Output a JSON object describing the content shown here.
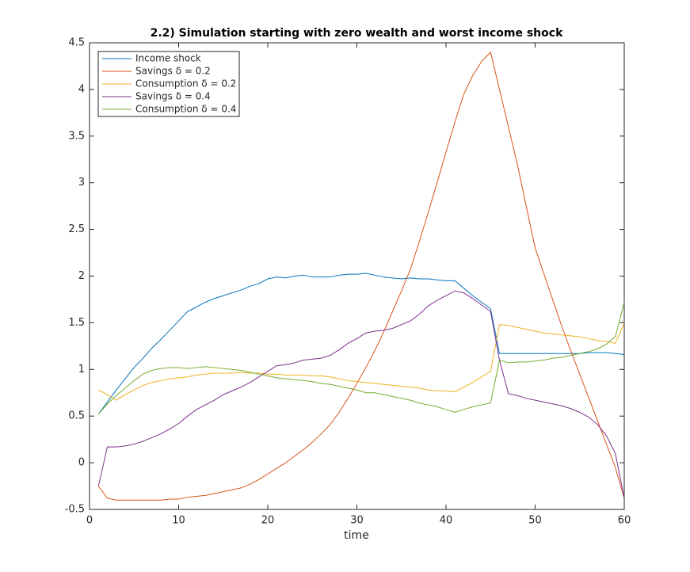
{
  "chart_data": {
    "type": "line",
    "title": "2.2) Simulation starting with zero wealth and worst income shock",
    "x_label": "time",
    "x": [
      1,
      2,
      3,
      4,
      5,
      6,
      7,
      8,
      9,
      10,
      11,
      12,
      13,
      14,
      15,
      16,
      17,
      18,
      19,
      20,
      21,
      22,
      23,
      24,
      25,
      26,
      27,
      28,
      29,
      30,
      31,
      32,
      33,
      34,
      35,
      36,
      37,
      38,
      39,
      40,
      41,
      42,
      43,
      44,
      45,
      46,
      47,
      48,
      49,
      50,
      51,
      52,
      53,
      54,
      55,
      56,
      57,
      58,
      59,
      60
    ],
    "series": [
      {
        "name": "Income shock",
        "color": "#0072bd",
        "values": [
          0.52,
          0.65,
          0.78,
          0.9,
          1.02,
          1.12,
          1.23,
          1.32,
          1.42,
          1.52,
          1.62,
          1.67,
          1.72,
          1.76,
          1.79,
          1.82,
          1.85,
          1.89,
          1.92,
          1.97,
          1.99,
          1.98,
          2.0,
          2.01,
          1.99,
          1.99,
          1.99,
          2.01,
          2.02,
          2.02,
          2.03,
          2.01,
          1.99,
          1.98,
          1.97,
          1.98,
          1.97,
          1.97,
          1.96,
          1.95,
          1.95,
          1.87,
          1.79,
          1.72,
          1.65,
          1.17,
          1.17,
          1.17,
          1.17,
          1.17,
          1.17,
          1.17,
          1.17,
          1.17,
          1.17,
          1.18,
          1.18,
          1.18,
          1.17,
          1.16
        ]
      },
      {
        "name": "Savings δ = 0.2",
        "color": "#d95319",
        "values": [
          -0.25,
          -0.38,
          -0.4,
          -0.4,
          -0.4,
          -0.4,
          -0.4,
          -0.4,
          -0.39,
          -0.39,
          -0.37,
          -0.36,
          -0.35,
          -0.33,
          -0.31,
          -0.29,
          -0.27,
          -0.23,
          -0.18,
          -0.12,
          -0.06,
          0.0,
          0.07,
          0.14,
          0.22,
          0.31,
          0.41,
          0.54,
          0.69,
          0.85,
          1.02,
          1.2,
          1.4,
          1.62,
          1.84,
          2.07,
          2.37,
          2.68,
          3.0,
          3.33,
          3.65,
          3.95,
          4.15,
          4.3,
          4.4,
          4.0,
          3.6,
          3.2,
          2.75,
          2.3,
          2.02,
          1.74,
          1.46,
          1.2,
          0.95,
          0.7,
          0.45,
          0.2,
          -0.05,
          -0.38
        ]
      },
      {
        "name": "Consumption δ = 0.2",
        "color": "#edb120",
        "values": [
          0.78,
          0.73,
          0.67,
          0.73,
          0.78,
          0.83,
          0.86,
          0.88,
          0.9,
          0.91,
          0.92,
          0.94,
          0.95,
          0.96,
          0.96,
          0.96,
          0.97,
          0.96,
          0.96,
          0.95,
          0.95,
          0.94,
          0.94,
          0.94,
          0.93,
          0.93,
          0.92,
          0.9,
          0.88,
          0.87,
          0.86,
          0.85,
          0.84,
          0.83,
          0.82,
          0.81,
          0.8,
          0.78,
          0.77,
          0.77,
          0.76,
          0.81,
          0.86,
          0.92,
          0.98,
          1.48,
          1.47,
          1.45,
          1.43,
          1.41,
          1.39,
          1.38,
          1.37,
          1.36,
          1.35,
          1.33,
          1.31,
          1.3,
          1.28,
          1.5
        ]
      },
      {
        "name": "Savings δ = 0.4",
        "color": "#7e2f8e",
        "values": [
          -0.25,
          0.17,
          0.17,
          0.18,
          0.2,
          0.23,
          0.27,
          0.31,
          0.36,
          0.42,
          0.5,
          0.57,
          0.62,
          0.67,
          0.73,
          0.77,
          0.81,
          0.86,
          0.92,
          0.98,
          1.04,
          1.05,
          1.07,
          1.1,
          1.11,
          1.12,
          1.15,
          1.21,
          1.28,
          1.33,
          1.39,
          1.41,
          1.42,
          1.44,
          1.48,
          1.52,
          1.59,
          1.68,
          1.74,
          1.79,
          1.84,
          1.82,
          1.76,
          1.69,
          1.62,
          1.1,
          0.74,
          0.72,
          0.69,
          0.67,
          0.65,
          0.63,
          0.61,
          0.58,
          0.54,
          0.49,
          0.41,
          0.29,
          0.1,
          -0.38
        ]
      },
      {
        "name": "Consumption δ = 0.4",
        "color": "#77ac30",
        "values": [
          0.52,
          0.63,
          0.72,
          0.8,
          0.88,
          0.95,
          0.99,
          1.01,
          1.02,
          1.02,
          1.01,
          1.02,
          1.03,
          1.02,
          1.01,
          1.0,
          0.99,
          0.97,
          0.95,
          0.93,
          0.91,
          0.9,
          0.89,
          0.88,
          0.87,
          0.85,
          0.84,
          0.82,
          0.8,
          0.78,
          0.75,
          0.75,
          0.73,
          0.71,
          0.69,
          0.67,
          0.64,
          0.62,
          0.6,
          0.57,
          0.54,
          0.57,
          0.6,
          0.62,
          0.64,
          1.1,
          1.07,
          1.08,
          1.08,
          1.09,
          1.1,
          1.12,
          1.13,
          1.15,
          1.17,
          1.19,
          1.22,
          1.27,
          1.35,
          1.72
        ]
      }
    ],
    "xlim": [
      0,
      60
    ],
    "xticks": [
      0,
      10,
      20,
      30,
      40,
      50,
      60
    ],
    "ylim": [
      -0.5,
      4.5
    ],
    "yticks": [
      -0.5,
      0,
      0.5,
      1,
      1.5,
      2,
      2.5,
      3,
      3.5,
      4,
      4.5
    ],
    "grid": false,
    "legend_position": "upper-left"
  }
}
